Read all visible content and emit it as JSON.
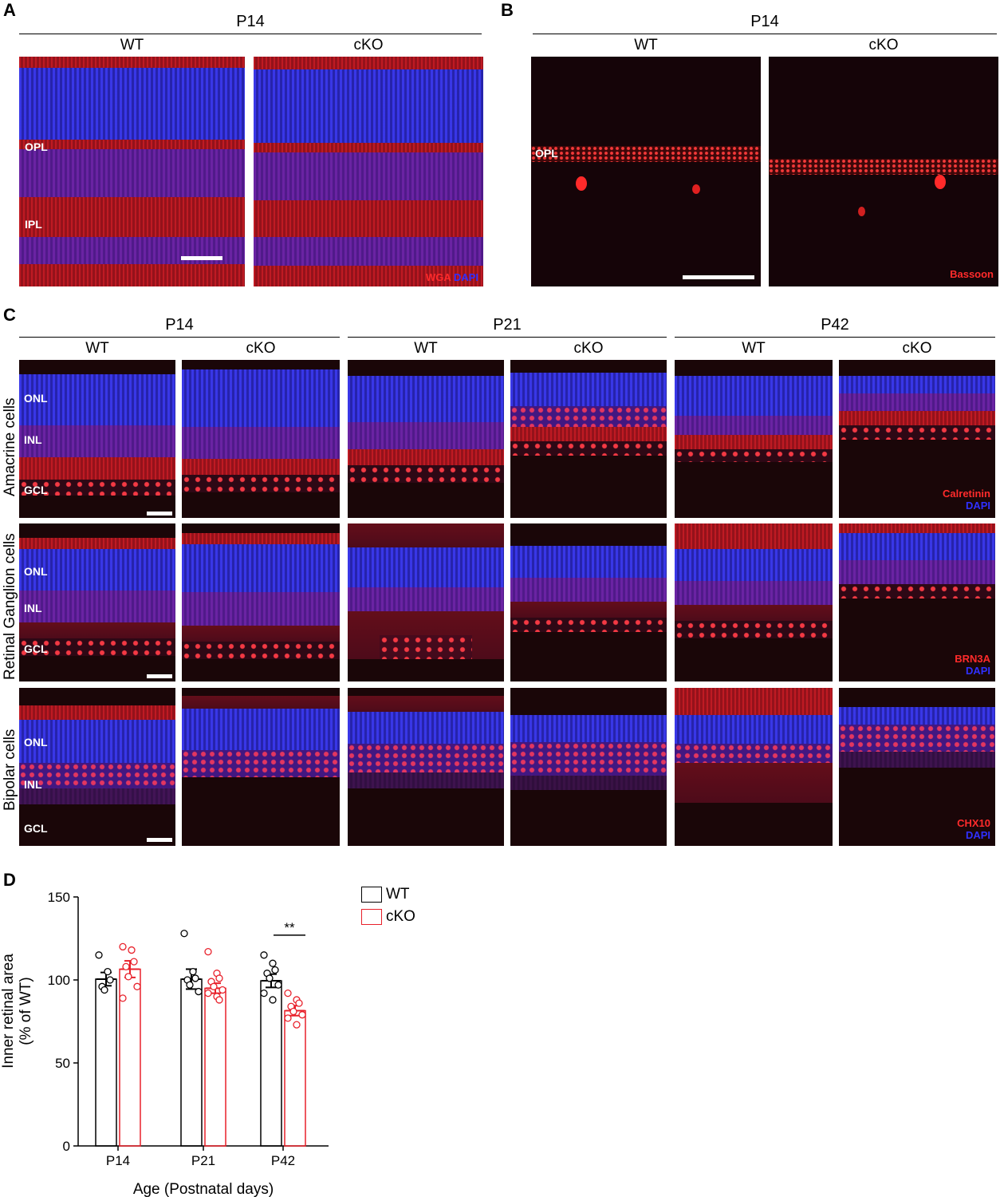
{
  "panelA": {
    "letter": "A",
    "age": "P14",
    "cols": [
      "WT",
      "cKO"
    ],
    "layers": [
      "OPL",
      "IPL"
    ],
    "stain_red": "WGA",
    "stain_blue": "DAPI"
  },
  "panelB": {
    "letter": "B",
    "age": "P14",
    "cols": [
      "WT",
      "cKO"
    ],
    "layer": "OPL",
    "stain": "Bassoon"
  },
  "panelC": {
    "letter": "C",
    "ages": [
      "P14",
      "P21",
      "P42"
    ],
    "cols": [
      "WT",
      "cKO",
      "WT",
      "cKO",
      "WT",
      "cKO"
    ],
    "rows": [
      {
        "label": "Amacrine cells",
        "layers": [
          "ONL",
          "INL",
          "GCL"
        ],
        "stain": "Calretinin",
        "counter": "DAPI"
      },
      {
        "label": "Retinal Ganglion cells",
        "layers": [
          "ONL",
          "INL",
          "GCL"
        ],
        "stain": "BRN3A",
        "counter": "DAPI"
      },
      {
        "label": "Bipolar cells",
        "layers": [
          "ONL",
          "INL",
          "GCL"
        ],
        "stain": "CHX10",
        "counter": "DAPI"
      }
    ]
  },
  "panelD": {
    "letter": "D",
    "legend": [
      "WT",
      "cKO"
    ],
    "significance": "**"
  },
  "colors": {
    "wt": "#000000",
    "cko": "#e8202a",
    "bg": "#ffffff"
  },
  "chart_data": {
    "type": "bar",
    "categories": [
      "P14",
      "P21",
      "P42"
    ],
    "series": [
      {
        "name": "WT",
        "values": [
          100.5,
          100.5,
          99.5
        ],
        "sem": [
          4,
          6,
          4
        ],
        "points": [
          [
            115,
            105,
            100,
            96,
            94
          ],
          [
            128,
            105,
            101,
            100,
            97,
            93
          ],
          [
            115,
            110,
            106,
            104,
            101,
            97,
            92,
            88
          ]
        ]
      },
      {
        "name": "cKO",
        "values": [
          106.5,
          95,
          81.5
        ],
        "sem": [
          5,
          3,
          3
        ],
        "points": [
          [
            120,
            118,
            111,
            108,
            102,
            96,
            89
          ],
          [
            117,
            104,
            101,
            99,
            96,
            94,
            92,
            90,
            88
          ],
          [
            92,
            88,
            86,
            84,
            81,
            79,
            77,
            73
          ]
        ]
      }
    ],
    "xlabel": "Age (Postnatal days)",
    "ylabel": "Inner retinal area (% of WT)",
    "ylabel_lines": [
      "Inner retinal area",
      "(% of WT)"
    ],
    "ylim": [
      0,
      150
    ],
    "yticks": [
      0,
      50,
      100,
      150
    ],
    "annotation": {
      "text": "**",
      "category": "P42"
    }
  }
}
